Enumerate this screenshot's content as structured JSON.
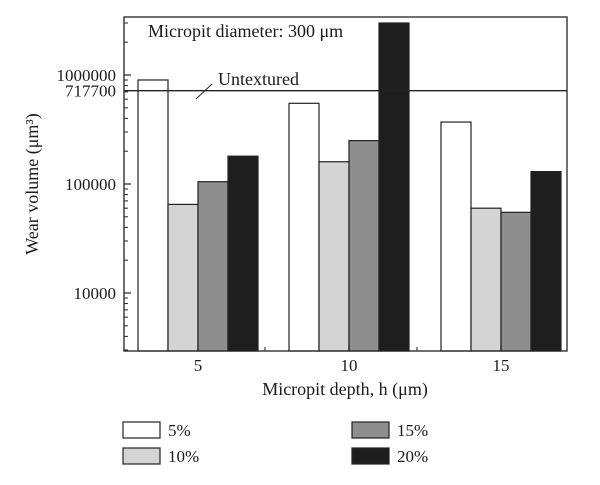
{
  "chart_data": {
    "type": "bar",
    "title": "Micropit diameter: 300 μm",
    "xlabel": "Micropit depth, h (μm)",
    "ylabel": "Wear volume (μm³)",
    "y_scale": "log",
    "ylim": [
      3000,
      3000000
    ],
    "y_ticks": [
      10000,
      100000,
      1000000
    ],
    "y_tick_labels": [
      "10000",
      "100000",
      "1000000"
    ],
    "categories": [
      "5",
      "10",
      "15"
    ],
    "series": [
      {
        "name": "5%",
        "color": "#ffffff",
        "values": [
          900000,
          550000,
          370000
        ]
      },
      {
        "name": "10%",
        "color": "#d4d4d4",
        "values": [
          65000,
          160000,
          60000
        ]
      },
      {
        "name": "15%",
        "color": "#8e8e8e",
        "values": [
          105000,
          250000,
          55000
        ]
      },
      {
        "name": "20%",
        "color": "#1e1e1e",
        "values": [
          180000,
          3000000,
          130000
        ]
      }
    ],
    "reference_line": {
      "label": "Untextured",
      "value": 717700,
      "value_label": "717700"
    },
    "legend_position": "bottom",
    "grid": false
  }
}
